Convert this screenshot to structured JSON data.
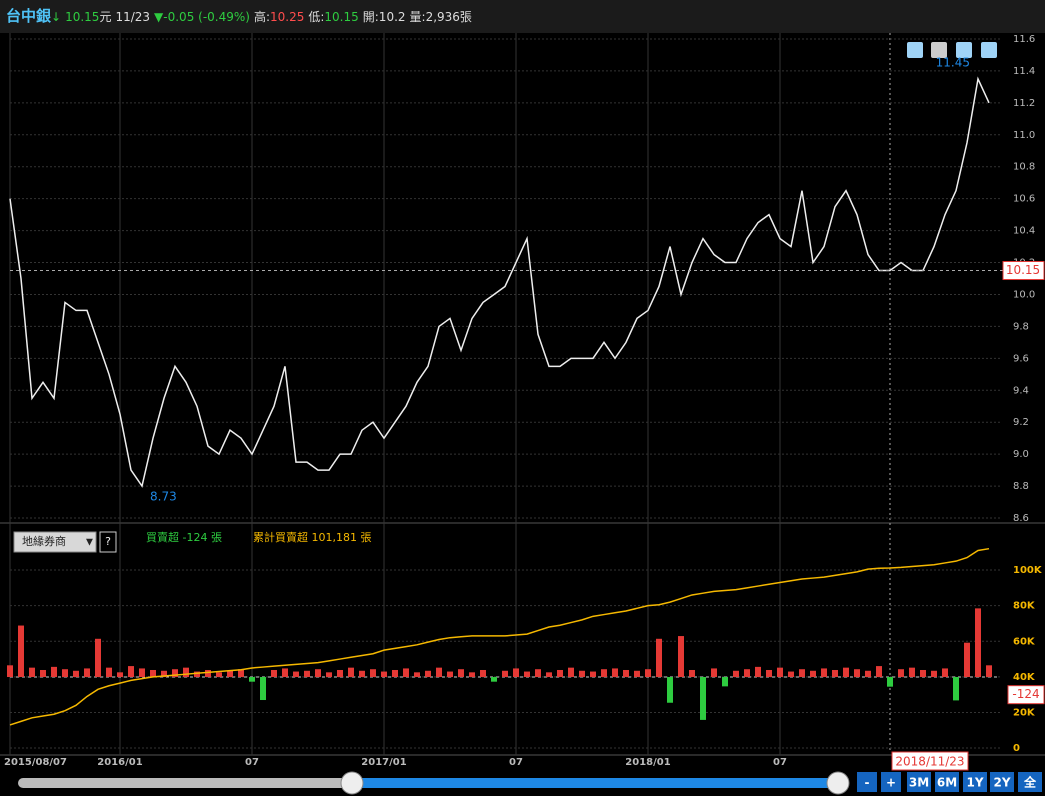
{
  "header": {
    "name": "台中銀",
    "arrow": "↓",
    "price": "10.15",
    "unit": "元",
    "date": "11/23",
    "change": "▼-0.05 (-0.49%)",
    "high_label": "高:",
    "high": "10.25",
    "low_label": "低:",
    "low": "10.15",
    "open": "開:10.2",
    "volume": "量:2,936張"
  },
  "chart_data": [
    {
      "type": "line",
      "categories": [
        "2015/08/07",
        null,
        null,
        null,
        null,
        null,
        null,
        null,
        null,
        null,
        "2016/01",
        null,
        null,
        null,
        null,
        null,
        null,
        null,
        null,
        null,
        null,
        null,
        "07",
        null,
        null,
        null,
        null,
        null,
        null,
        null,
        null,
        null,
        null,
        null,
        "2017/01",
        null,
        null,
        null,
        null,
        null,
        null,
        null,
        null,
        null,
        null,
        null,
        "07",
        null,
        null,
        null,
        null,
        null,
        null,
        null,
        null,
        null,
        null,
        null,
        "2018/01",
        null,
        null,
        null,
        null,
        null,
        null,
        null,
        null,
        null,
        null,
        null,
        "07",
        null,
        null,
        null,
        null,
        null,
        null,
        null,
        null,
        null,
        "2018/11/23",
        null,
        null,
        null,
        null,
        null,
        null,
        null,
        null,
        null
      ],
      "values": [
        10.6,
        10.1,
        9.35,
        9.45,
        9.35,
        9.95,
        9.9,
        9.9,
        9.7,
        9.5,
        9.25,
        8.9,
        8.8,
        9.1,
        9.35,
        9.55,
        9.45,
        9.3,
        9.05,
        9.0,
        9.15,
        9.1,
        9.0,
        9.15,
        9.3,
        9.55,
        8.95,
        8.95,
        8.9,
        8.9,
        9.0,
        9.0,
        9.15,
        9.2,
        9.1,
        9.2,
        9.3,
        9.45,
        9.55,
        9.8,
        9.85,
        9.65,
        9.85,
        9.95,
        10.0,
        10.05,
        10.2,
        10.35,
        9.75,
        9.55,
        9.55,
        9.6,
        9.6,
        9.6,
        9.7,
        9.6,
        9.7,
        9.85,
        9.9,
        10.05,
        10.3,
        10.0,
        10.2,
        10.35,
        10.25,
        10.2,
        10.2,
        10.35,
        10.45,
        10.5,
        10.35,
        10.3,
        10.65,
        10.2,
        10.3,
        10.55,
        10.65,
        10.5,
        10.25,
        10.15,
        10.15,
        10.2,
        10.15,
        10.15,
        10.3,
        10.5,
        10.65,
        10.95,
        11.35,
        11.2
      ],
      "color": "#eeeeee",
      "low_marker": 8.73,
      "high_marker": 11.45,
      "ylim": [
        8.6,
        11.6
      ],
      "yticks": [
        8.6,
        8.8,
        {
          "value": 9,
          "label": "9.0"
        },
        9.2,
        9.4,
        9.6,
        9.8,
        {
          "value": 10,
          "label": "10.0"
        },
        10.2,
        10.4,
        10.6,
        10.8,
        {
          "value": 11,
          "label": "11.0"
        },
        11.2,
        11.4,
        11.6
      ],
      "grid": true
    },
    {
      "type": "bar",
      "series": [
        {
          "name": "買賣超 -124 張",
          "color": "#e53935",
          "negative_color": "#2ecc40",
          "axis": "y2",
          "values": [
            150,
            660,
            120,
            90,
            130,
            100,
            80,
            110,
            490,
            120,
            60,
            140,
            110,
            90,
            80,
            100,
            120,
            70,
            90,
            60,
            80,
            100,
            -60,
            -295,
            90,
            110,
            70,
            80,
            100,
            60,
            90,
            120,
            80,
            100,
            70,
            90,
            110,
            60,
            80,
            120,
            70,
            100,
            60,
            90,
            -60,
            80,
            110,
            70,
            100,
            60,
            90,
            120,
            80,
            70,
            100,
            110,
            90,
            80,
            100,
            490,
            -330,
            525,
            90,
            -550,
            110,
            -120,
            80,
            100,
            130,
            90,
            120,
            70,
            100,
            80,
            110,
            90,
            120,
            100,
            80,
            140,
            -124,
            100,
            120,
            90,
            80,
            110,
            -300,
            440,
            880,
            150
          ]
        },
        {
          "name": "累計買賣超 101,181 張",
          "color": "#f5b800",
          "type": "line",
          "values": [
            13000,
            15000,
            17000,
            18000,
            19000,
            21000,
            24000,
            29000,
            33000,
            35000,
            36500,
            38000,
            39000,
            40000,
            40500,
            41000,
            41500,
            42000,
            42500,
            43000,
            43500,
            44000,
            45000,
            45500,
            46000,
            46500,
            47000,
            47500,
            48000,
            49000,
            50000,
            51000,
            52000,
            53000,
            55000,
            56000,
            57000,
            58000,
            59500,
            61000,
            62000,
            62500,
            63000,
            63000,
            63000,
            63000,
            63500,
            64000,
            66000,
            68000,
            69000,
            70500,
            72000,
            74000,
            75000,
            76000,
            77000,
            78500,
            80000,
            80500,
            82000,
            84000,
            86000,
            87000,
            88000,
            88500,
            89000,
            90000,
            91000,
            92000,
            93000,
            94000,
            95000,
            95500,
            96000,
            97000,
            98000,
            99000,
            100500,
            101000,
            101181,
            101500,
            102000,
            102500,
            103000,
            104000,
            105000,
            107000,
            111000,
            112000
          ]
        }
      ],
      "ylim": [
        -3900,
        122500
      ],
      "yticks": [
        0,
        {
          "value": 20000,
          "label": "20K"
        },
        {
          "value": 40000,
          "label": "40K"
        },
        {
          "value": 60000,
          "label": "60K"
        },
        {
          "value": 80000,
          "label": "80K"
        },
        {
          "value": 100000,
          "label": "100K"
        }
      ],
      "y2lim": [
        -1000,
        1885
      ],
      "grid": true
    }
  ],
  "controls": {
    "selector": "地緣券商",
    "help": "?",
    "buttons": [
      "-",
      "+",
      "3M",
      "6M",
      "1Y",
      "2Y",
      "全"
    ]
  }
}
